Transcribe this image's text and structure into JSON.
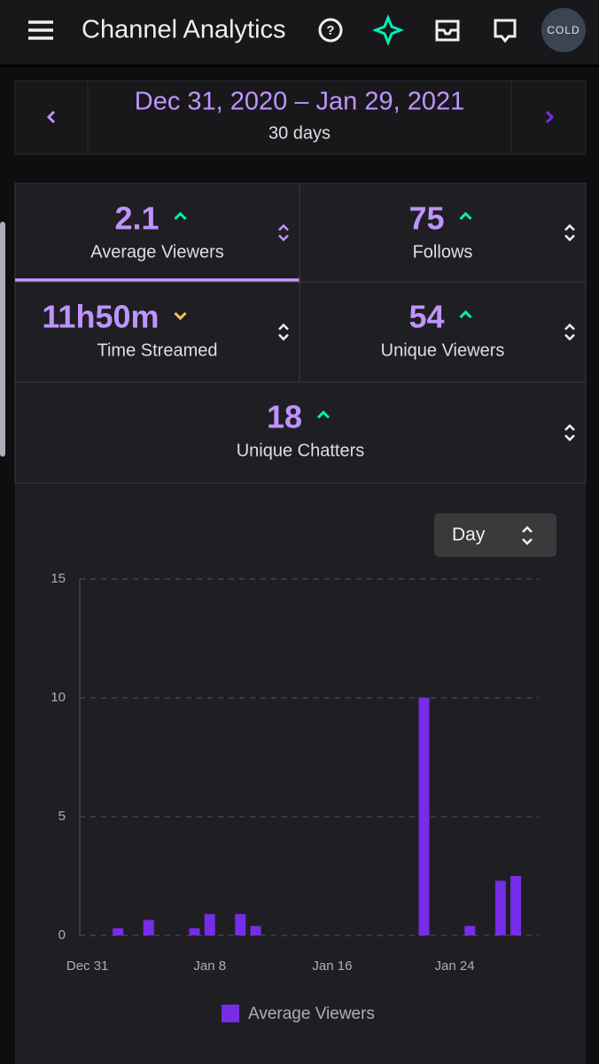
{
  "header": {
    "title": "Channel Analytics",
    "avatar": "COLD"
  },
  "date_range": {
    "label": "Dec 31, 2020 – Jan 29, 2021",
    "length": "30 days"
  },
  "stats": [
    {
      "value": 2.1,
      "label": "Average Viewers",
      "trend": "up"
    },
    {
      "value": 75,
      "label": "Follows",
      "trend": "up"
    },
    {
      "value": "11h50m",
      "label": "Time Streamed",
      "trend": "down"
    },
    {
      "value": 54,
      "label": "Unique Viewers",
      "trend": "up"
    },
    {
      "value": 18,
      "label": "Unique Chatters",
      "trend": "up"
    }
  ],
  "selected_stat": 0,
  "interval": "Day",
  "chart_data": {
    "type": "bar",
    "categories": [
      "Dec 31",
      null,
      null,
      null,
      null,
      null,
      null,
      null,
      "Jan 8",
      null,
      null,
      null,
      null,
      null,
      null,
      null,
      "Jan 16",
      null,
      null,
      null,
      null,
      null,
      null,
      null,
      "Jan 24",
      null,
      null,
      null,
      null,
      null
    ],
    "series": [
      {
        "name": "Average Viewers",
        "color": "#772ce8",
        "values": [
          0,
          0,
          0.3,
          0,
          0.65,
          0,
          0,
          0.3,
          0.9,
          0,
          0.9,
          0.4,
          0,
          0,
          0,
          0,
          0,
          0,
          0,
          0,
          0,
          0,
          10,
          0,
          0,
          0.4,
          0,
          2.3,
          2.5,
          0
        ]
      }
    ],
    "ylim": [
      0,
      15
    ],
    "yticks": [
      0,
      5,
      10,
      15
    ],
    "grid": true
  }
}
